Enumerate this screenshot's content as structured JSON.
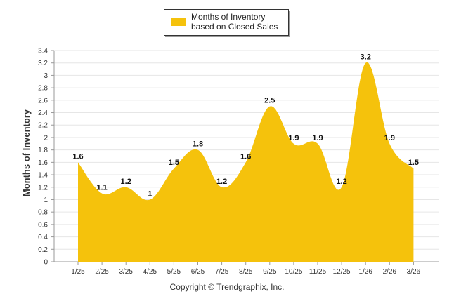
{
  "chart_data": {
    "type": "area",
    "title": "",
    "xlabel": "",
    "ylabel": "Months of Inventory",
    "ylim": [
      0,
      3.4
    ],
    "ytick_step": 0.2,
    "grid": true,
    "legend_position": "top-center",
    "categories": [
      "1/25",
      "2/25",
      "3/25",
      "4/25",
      "5/25",
      "6/25",
      "7/25",
      "8/25",
      "9/25",
      "10/25",
      "11/25",
      "12/25",
      "1/26",
      "2/26",
      "3/26"
    ],
    "series": [
      {
        "name": "Months of Inventory based on Closed Sales",
        "color": "#f5c20c",
        "values": [
          1.6,
          1.1,
          1.2,
          1,
          1.5,
          1.8,
          1.2,
          1.6,
          2.5,
          1.9,
          1.9,
          1.2,
          3.2,
          1.9,
          1.5
        ],
        "labels": [
          "1.6",
          "1.1",
          "1.2",
          "1",
          "1.5",
          "1.8",
          "1.2",
          "1.6",
          "2.5",
          "1.9",
          "1.9",
          "1.2",
          "3.2",
          "1.9",
          "1.5"
        ]
      }
    ]
  },
  "legend": {
    "label": "Months of Inventory based on Closed Sales"
  },
  "footer": {
    "copyright": "Copyright © Trendgraphix, Inc."
  },
  "colors": {
    "area": "#f5c20c",
    "grid": "#e6e6e6",
    "axis": "#999999"
  }
}
